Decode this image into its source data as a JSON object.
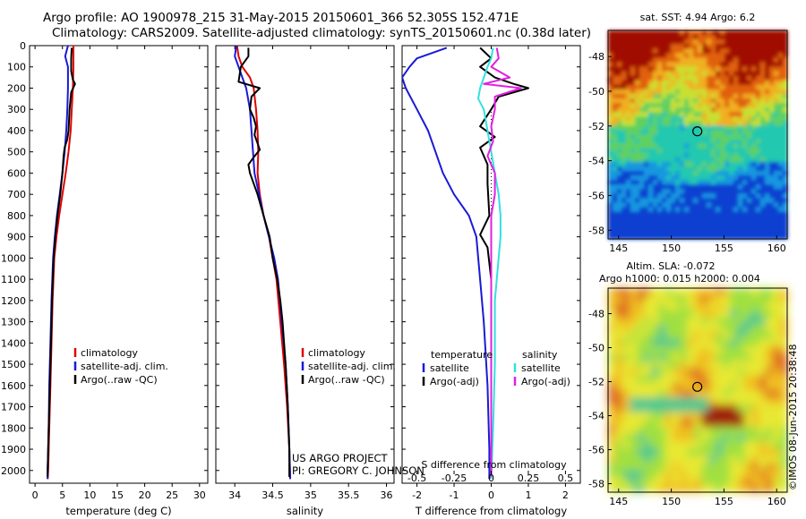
{
  "header": {
    "line1": "Argo profile: AO 1900978_215 31-May-2015 20150601_366 52.305S 152.471E",
    "line2": "Climatology: CARS2009. Satellite-adjusted climatology: synTS_20150601.nc (0.38d later)"
  },
  "credits": {
    "project": "US ARGO PROJECT",
    "pi": "PI: GREGORY C. JOHNSON",
    "stamp": "©IMOS 08-Jun-2015 20:38:48"
  },
  "colors": {
    "climatology": "#e00000",
    "satellite": "#1a1ad6",
    "argo": "#000000",
    "sal_satellite": "#33e0e0",
    "sal_argo": "#e020e0"
  },
  "depth_axis": {
    "min": 0,
    "max": 2060,
    "ticks": [
      0,
      100,
      200,
      300,
      400,
      500,
      600,
      700,
      800,
      900,
      1000,
      1100,
      1200,
      1300,
      1400,
      1500,
      1600,
      1700,
      1800,
      1900,
      2000
    ],
    "reversed": true
  },
  "chart_data": [
    {
      "id": "temperature",
      "type": "line",
      "xlabel": "temperature (deg C)",
      "xlim": [
        -1,
        31.5
      ],
      "xticks": [
        0,
        5,
        10,
        15,
        20,
        25,
        30
      ],
      "legend": [
        "climatology",
        "satellite-adj. clim.",
        "Argo(..raw -QC)"
      ],
      "series": [
        {
          "name": "climatology",
          "color": "#e00000",
          "points": [
            [
              7.0,
              0
            ],
            [
              7.0,
              100
            ],
            [
              6.9,
              200
            ],
            [
              6.7,
              300
            ],
            [
              6.5,
              400
            ],
            [
              6.1,
              500
            ],
            [
              5.6,
              600
            ],
            [
              5.0,
              700
            ],
            [
              4.4,
              800
            ],
            [
              3.9,
              900
            ],
            [
              3.5,
              1000
            ],
            [
              3.2,
              1200
            ],
            [
              3.0,
              1400
            ],
            [
              2.8,
              1600
            ],
            [
              2.6,
              1800
            ],
            [
              2.4,
              2000
            ],
            [
              2.3,
              2040
            ]
          ]
        },
        {
          "name": "satellite-adj. clim.",
          "color": "#1a1ad6",
          "points": [
            [
              6.0,
              0
            ],
            [
              5.5,
              50
            ],
            [
              6.0,
              100
            ],
            [
              6.0,
              200
            ],
            [
              5.9,
              300
            ],
            [
              5.7,
              400
            ],
            [
              5.4,
              500
            ],
            [
              5.0,
              600
            ],
            [
              4.5,
              700
            ],
            [
              4.0,
              800
            ],
            [
              3.6,
              900
            ],
            [
              3.3,
              1000
            ],
            [
              3.0,
              1200
            ],
            [
              2.8,
              1400
            ],
            [
              2.6,
              1600
            ],
            [
              2.5,
              1800
            ],
            [
              2.3,
              2000
            ],
            [
              2.3,
              2040
            ]
          ]
        },
        {
          "name": "Argo(..raw -QC)",
          "color": "#000000",
          "points": [
            [
              6.7,
              10
            ],
            [
              6.6,
              60
            ],
            [
              6.6,
              120
            ],
            [
              6.9,
              160
            ],
            [
              7.3,
              180
            ],
            [
              6.6,
              220
            ],
            [
              6.3,
              300
            ],
            [
              6.1,
              400
            ],
            [
              5.9,
              440
            ],
            [
              5.4,
              480
            ],
            [
              5.2,
              520
            ],
            [
              5.0,
              600
            ],
            [
              4.6,
              700
            ],
            [
              4.1,
              800
            ],
            [
              3.7,
              900
            ],
            [
              3.4,
              1000
            ],
            [
              3.1,
              1200
            ],
            [
              2.9,
              1400
            ],
            [
              2.7,
              1600
            ],
            [
              2.5,
              1800
            ],
            [
              2.3,
              2000
            ],
            [
              2.3,
              2030
            ]
          ]
        }
      ]
    },
    {
      "id": "salinity",
      "type": "line",
      "xlabel": "salinity",
      "xlim": [
        33.75,
        36.1
      ],
      "xticks": [
        34,
        34.5,
        35,
        35.5,
        36
      ],
      "legend": [
        "climatology",
        "satellite-adj. clim.",
        "Argo(..raw -QC)"
      ],
      "series": [
        {
          "name": "climatology",
          "color": "#e00000",
          "points": [
            [
              34.03,
              0
            ],
            [
              34.05,
              50
            ],
            [
              34.1,
              100
            ],
            [
              34.2,
              150
            ],
            [
              34.25,
              200
            ],
            [
              34.28,
              300
            ],
            [
              34.3,
              400
            ],
            [
              34.31,
              500
            ],
            [
              34.3,
              600
            ],
            [
              34.33,
              700
            ],
            [
              34.38,
              800
            ],
            [
              34.45,
              900
            ],
            [
              34.5,
              1000
            ],
            [
              34.55,
              1100
            ],
            [
              34.6,
              1300
            ],
            [
              34.65,
              1500
            ],
            [
              34.69,
              1700
            ],
            [
              34.72,
              1900
            ],
            [
              34.73,
              2040
            ]
          ]
        },
        {
          "name": "satellite-adj. clim.",
          "color": "#1a1ad6",
          "points": [
            [
              34.02,
              0
            ],
            [
              34.0,
              50
            ],
            [
              34.05,
              100
            ],
            [
              34.1,
              150
            ],
            [
              34.15,
              200
            ],
            [
              34.2,
              300
            ],
            [
              34.22,
              400
            ],
            [
              34.24,
              500
            ],
            [
              34.26,
              600
            ],
            [
              34.32,
              700
            ],
            [
              34.38,
              800
            ],
            [
              34.45,
              900
            ],
            [
              34.52,
              1000
            ],
            [
              34.57,
              1100
            ],
            [
              34.62,
              1300
            ],
            [
              34.67,
              1500
            ],
            [
              34.7,
              1700
            ],
            [
              34.72,
              1900
            ],
            [
              34.73,
              2040
            ]
          ]
        },
        {
          "name": "Argo(..raw -QC)",
          "color": "#000000",
          "points": [
            [
              34.18,
              10
            ],
            [
              34.18,
              50
            ],
            [
              34.08,
              100
            ],
            [
              34.05,
              170
            ],
            [
              34.33,
              200
            ],
            [
              34.22,
              240
            ],
            [
              34.2,
              300
            ],
            [
              34.25,
              340
            ],
            [
              34.28,
              380
            ],
            [
              34.26,
              420
            ],
            [
              34.3,
              460
            ],
            [
              34.33,
              490
            ],
            [
              34.24,
              530
            ],
            [
              34.18,
              560
            ],
            [
              34.2,
              600
            ],
            [
              34.3,
              700
            ],
            [
              34.38,
              800
            ],
            [
              34.42,
              850
            ],
            [
              34.46,
              900
            ],
            [
              34.5,
              1000
            ],
            [
              34.56,
              1100
            ],
            [
              34.6,
              1200
            ],
            [
              34.63,
              1300
            ],
            [
              34.67,
              1500
            ],
            [
              34.7,
              1700
            ],
            [
              34.72,
              1900
            ],
            [
              34.72,
              2030
            ]
          ]
        }
      ]
    },
    {
      "id": "difference",
      "type": "line",
      "xlabel": "T difference from climatology",
      "xlabel2": "S difference from climatology",
      "xlim": [
        -2.4,
        2.4
      ],
      "xticks": [
        -2,
        -1,
        0,
        1,
        2
      ],
      "xticks_s": [
        -0.5,
        -0.25,
        0,
        0.25,
        0.5
      ],
      "xtick_labels_s": [
        "-0.5",
        "-0.25",
        "0",
        "0.25",
        "0.5"
      ],
      "legend_headers": [
        "temperature",
        "salinity"
      ],
      "legend_left": [
        "satellite",
        "Argo(-adj)"
      ],
      "legend_right": [
        "satellite",
        "Argo(-adj)"
      ],
      "series": [
        {
          "name": "T satellite",
          "color": "#1a1ad6",
          "points": [
            [
              -1.2,
              10
            ],
            [
              -2.0,
              60
            ],
            [
              -2.2,
              100
            ],
            [
              -2.4,
              150
            ],
            [
              -2.3,
              200
            ],
            [
              -2.0,
              300
            ],
            [
              -1.7,
              400
            ],
            [
              -1.5,
              500
            ],
            [
              -1.3,
              600
            ],
            [
              -1.0,
              700
            ],
            [
              -0.6,
              800
            ],
            [
              -0.4,
              900
            ],
            [
              -0.3,
              1100
            ],
            [
              -0.2,
              1300
            ],
            [
              -0.1,
              1600
            ],
            [
              -0.05,
              1900
            ],
            [
              -0.05,
              2040
            ]
          ]
        },
        {
          "name": "T Argo(-adj)",
          "color": "#000000",
          "points": [
            [
              -0.3,
              10
            ],
            [
              0.0,
              60
            ],
            [
              -0.3,
              100
            ],
            [
              0.1,
              150
            ],
            [
              0.6,
              180
            ],
            [
              1.0,
              200
            ],
            [
              0.2,
              240
            ],
            [
              0.0,
              300
            ],
            [
              -0.3,
              380
            ],
            [
              0.1,
              430
            ],
            [
              -0.3,
              480
            ],
            [
              -0.1,
              560
            ],
            [
              -0.1,
              650
            ],
            [
              -0.05,
              800
            ],
            [
              -0.3,
              890
            ],
            [
              -0.1,
              950
            ],
            [
              0.0,
              1100
            ],
            [
              0.0,
              1500
            ],
            [
              0.0,
              2030
            ]
          ]
        },
        {
          "name": "S satellite",
          "color": "#33e0e0",
          "points": [
            [
              0.05,
              10
            ],
            [
              0.0,
              60
            ],
            [
              -0.1,
              100
            ],
            [
              -0.3,
              200
            ],
            [
              -0.35,
              250
            ],
            [
              -0.2,
              300
            ],
            [
              -0.1,
              400
            ],
            [
              0.0,
              500
            ],
            [
              0.1,
              600
            ],
            [
              0.2,
              700
            ],
            [
              0.25,
              800
            ],
            [
              0.25,
              900
            ],
            [
              0.2,
              1000
            ],
            [
              0.15,
              1100
            ],
            [
              0.1,
              1200
            ],
            [
              0.1,
              1500
            ],
            [
              0.05,
              1800
            ],
            [
              0.0,
              2040
            ]
          ]
        },
        {
          "name": "S Argo(-adj)",
          "color": "#e020e0",
          "points": [
            [
              0.15,
              10
            ],
            [
              0.2,
              60
            ],
            [
              0.0,
              100
            ],
            [
              0.5,
              150
            ],
            [
              -0.2,
              180
            ],
            [
              0.8,
              200
            ],
            [
              0.1,
              240
            ],
            [
              0.1,
              300
            ],
            [
              0.0,
              380
            ],
            [
              0.05,
              450
            ],
            [
              -0.1,
              520
            ],
            [
              0.1,
              600
            ],
            [
              0.1,
              700
            ],
            [
              0.0,
              800
            ],
            [
              0.0,
              900
            ],
            [
              0.0,
              1100
            ],
            [
              0.0,
              2030
            ]
          ]
        }
      ]
    }
  ],
  "maps": [
    {
      "id": "sst-map",
      "title": "sat. SST: 4.94  Argo: 6.2",
      "type": "heatmap",
      "xlim": [
        144,
        161
      ],
      "ylim": [
        -58.5,
        -46.5
      ],
      "xticks": [
        145,
        150,
        155,
        160
      ],
      "yticks": [
        -48,
        -50,
        -52,
        -54,
        -56,
        -58
      ],
      "marker": {
        "lon": 152.471,
        "lat": -52.305
      }
    },
    {
      "id": "sla-map",
      "title": "Altim. SLA: -0.072",
      "subtitle": "Argo h1000: 0.015 h2000: 0.004",
      "type": "heatmap",
      "xlim": [
        144,
        161
      ],
      "ylim": [
        -58.5,
        -46.5
      ],
      "xticks": [
        145,
        150,
        155,
        160
      ],
      "yticks": [
        -48,
        -50,
        -52,
        -54,
        -56,
        -58
      ],
      "marker": {
        "lon": 152.471,
        "lat": -52.305
      }
    }
  ]
}
